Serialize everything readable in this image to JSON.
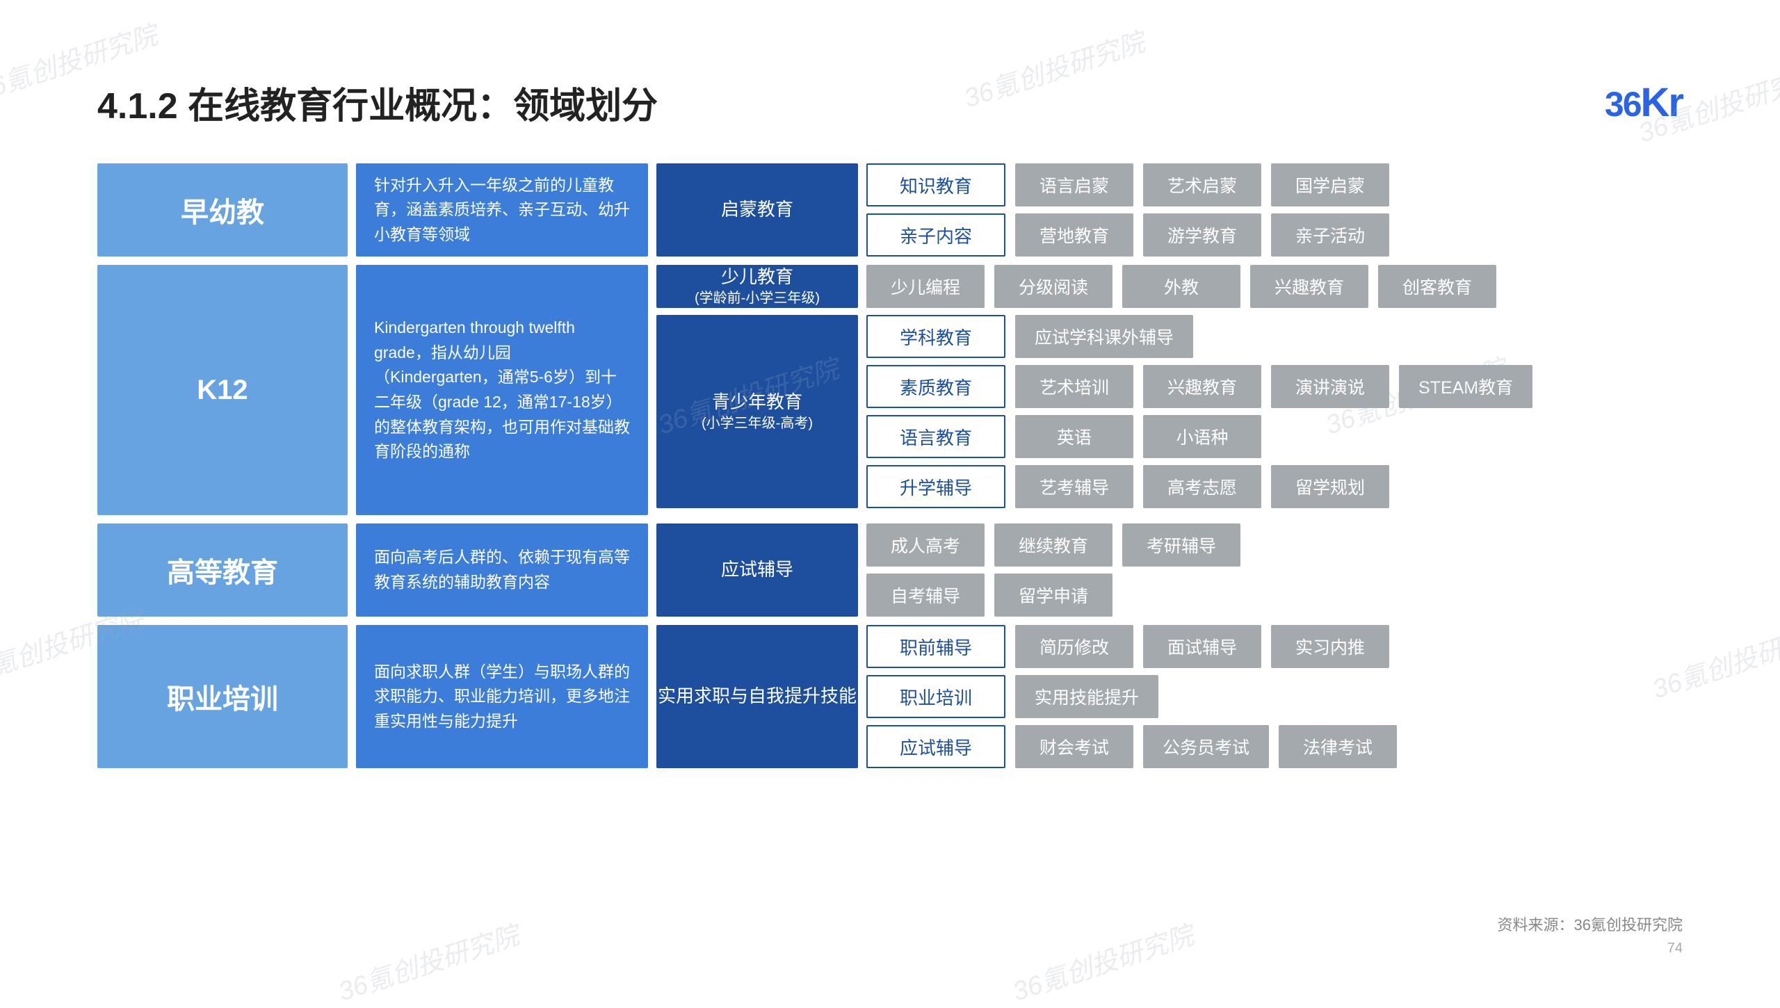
{
  "title": "4.1.2 在线教育行业概况：领域划分",
  "logo": {
    "text_36": "36",
    "text_kr": "Kr"
  },
  "colors": {
    "light_blue": "#66a3e0",
    "mid_blue": "#3b7dd8",
    "dark_blue": "#1d4f9e",
    "outline_blue": "#1d4f9e",
    "gray": "#a4a9ad",
    "title": "#222222",
    "logo": "#2a63e4"
  },
  "watermark_text": "36氪创投研究院",
  "footer_source": "资料来源：36氪创投研究院",
  "page_number": "74",
  "sections": [
    {
      "category": "早幼教",
      "description": "针对升入升入一年级之前的儿童教育，涵盖素质培养、亲子互动、幼升小教育等领域",
      "subgroups": [
        {
          "label": "启蒙教育",
          "subnote": "",
          "rows": [
            {
              "outline": "知识教育",
              "tags": [
                "语言启蒙",
                "艺术启蒙",
                "国学启蒙"
              ]
            },
            {
              "outline": "亲子内容",
              "tags": [
                "营地教育",
                "游学教育",
                "亲子活动"
              ]
            }
          ]
        }
      ]
    },
    {
      "category": "K12",
      "description": "Kindergarten through twelfth grade，指从幼儿园（Kindergarten，通常5-6岁）到十二年级（grade 12，通常17-18岁）的整体教育架构，也可用作对基础教育阶段的通称",
      "subgroups": [
        {
          "label": "少儿教育",
          "subnote": "(学龄前-小学三年级)",
          "rows": [
            {
              "outline": "",
              "tags": [
                "少儿编程",
                "分级阅读",
                "外教",
                "兴趣教育",
                "创客教育"
              ]
            }
          ]
        },
        {
          "label": "青少年教育",
          "subnote": "(小学三年级-高考)",
          "rows": [
            {
              "outline": "学科教育",
              "tags": [
                "应试学科课外辅导"
              ]
            },
            {
              "outline": "素质教育",
              "tags": [
                "艺术培训",
                "兴趣教育",
                "演讲演说",
                "STEAM教育"
              ]
            },
            {
              "outline": "语言教育",
              "tags": [
                "英语",
                "小语种"
              ]
            },
            {
              "outline": "升学辅导",
              "tags": [
                "艺考辅导",
                "高考志愿",
                "留学规划"
              ]
            }
          ]
        }
      ]
    },
    {
      "category": "高等教育",
      "description": "面向高考后人群的、依赖于现有高等教育系统的辅助教育内容",
      "subgroups": [
        {
          "label": "应试辅导",
          "subnote": "",
          "rows": [
            {
              "outline": "",
              "tags": [
                "成人高考",
                "继续教育",
                "考研辅导"
              ]
            },
            {
              "outline": "",
              "tags": [
                "自考辅导",
                "留学申请"
              ]
            }
          ]
        }
      ]
    },
    {
      "category": "职业培训",
      "description": "面向求职人群（学生）与职场人群的求职能力、职业能力培训，更多地注重实用性与能力提升",
      "subgroups": [
        {
          "label": "实用求职与自我提升技能",
          "subnote": "",
          "rows": [
            {
              "outline": "职前辅导",
              "tags": [
                "简历修改",
                "面试辅导",
                "实习内推"
              ]
            },
            {
              "outline": "职业培训",
              "tags": [
                "实用技能提升"
              ]
            },
            {
              "outline": "应试辅导",
              "tags": [
                "财会考试",
                "公务员考试",
                "法律考试"
              ]
            }
          ]
        }
      ]
    }
  ]
}
